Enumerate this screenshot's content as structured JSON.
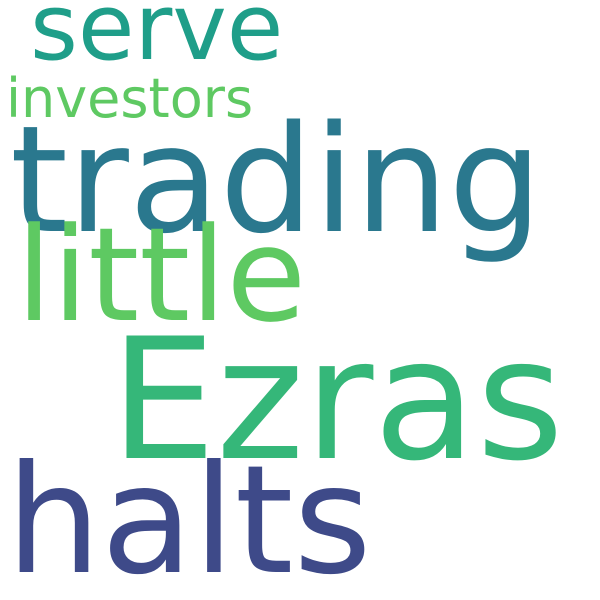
{
  "words": [
    {
      "text": "serve",
      "color": "#1f9e89"
    },
    {
      "text": "investors",
      "color": "#5ec962"
    },
    {
      "text": "trading",
      "color": "#2a788e"
    },
    {
      "text": "little",
      "color": "#5ec962"
    },
    {
      "text": "Ezras",
      "color": "#35b779"
    },
    {
      "text": "halts",
      "color": "#3e4a89"
    }
  ]
}
